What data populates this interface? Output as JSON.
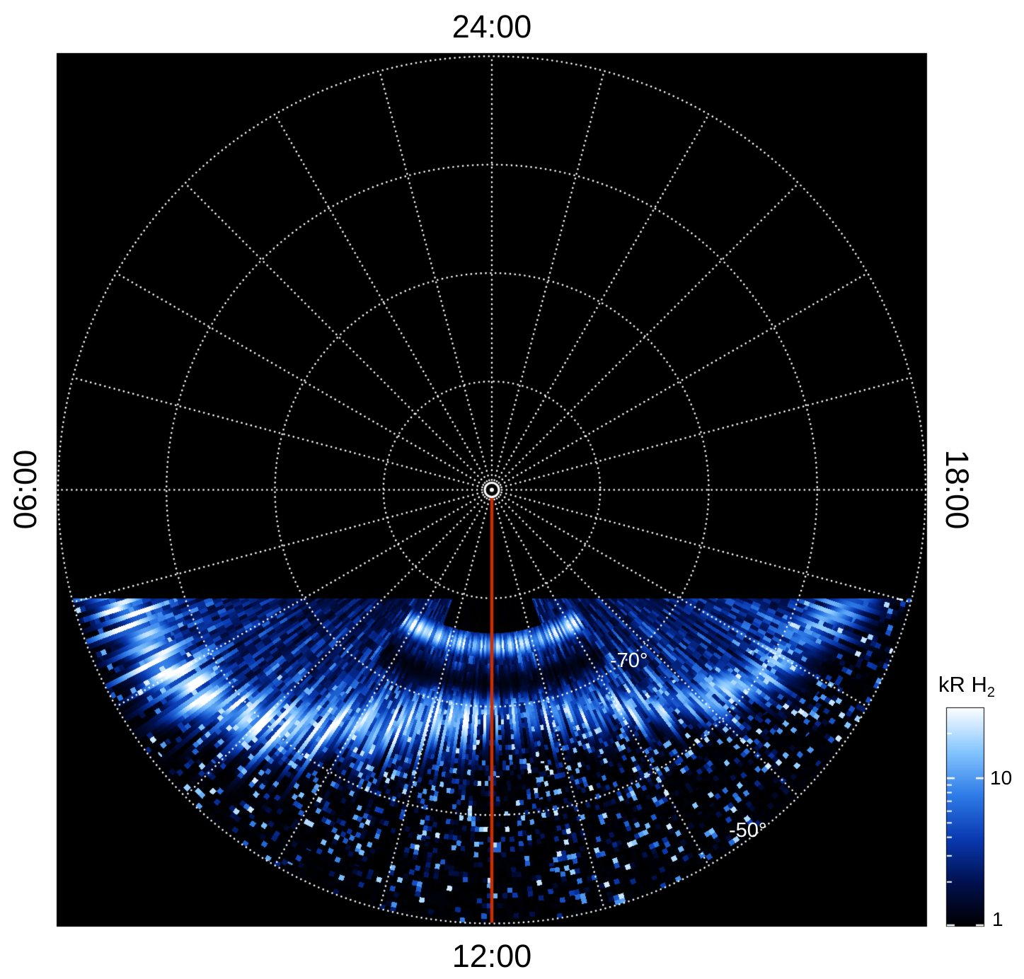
{
  "labels": {
    "top": "24:00",
    "bottom": "12:00",
    "left": "06:00",
    "right": "18:00",
    "lat_inner": "-70°",
    "lat_outer": "-50°"
  },
  "colorbar": {
    "title_main": "kR H",
    "title_sub": "2",
    "tick_upper": "10",
    "tick_lower": "1"
  },
  "colors": {
    "plot_background": "#000000",
    "grid": "#ffffff",
    "meridian_line": "#cc2e00",
    "label_text": "#000000",
    "latitude_label_text": "#ffffff",
    "colormap": [
      "#000000",
      "#001150",
      "#0a3ab2",
      "#2f7ce8",
      "#86c7ff",
      "#ffffff"
    ]
  },
  "chart_data": {
    "type": "heatmap",
    "projection": "polar",
    "angular_axis": {
      "quantity": "local time",
      "labels": {
        "top": "24:00",
        "left": "06:00",
        "bottom": "12:00",
        "right": "18:00"
      },
      "spoke_interval_hours": 1
    },
    "radial_axis": {
      "quantity": "latitude (deg)",
      "pole_deg": -90,
      "edge_deg": -50,
      "ring_interval_deg": 10,
      "rings_deg": [
        -80,
        -70,
        -60,
        -50
      ],
      "labeled_rings": [
        "-70°",
        "-50°"
      ]
    },
    "value_axis": {
      "label": "kR H2",
      "scale": "log",
      "range_kR": [
        1,
        30
      ],
      "colorbar_ticks": [
        10,
        1
      ]
    },
    "data_coverage": "Emission present only in the dayside sector below the horizontal chord crossing the noon meridian near -80 deg; the nightside (upper) half of the polar cap contains no data (black).",
    "auroral_band": {
      "hours": [
        6,
        7,
        8,
        9,
        10,
        11,
        12,
        13,
        14,
        15,
        16,
        17,
        18
      ],
      "peak_latitude_deg": [
        -52,
        -54,
        -56,
        -60,
        -65,
        -68,
        -70,
        -69,
        -67,
        -63,
        -59,
        -55,
        -52
      ],
      "peak_intensity_kR": [
        20,
        28,
        30,
        26,
        20,
        16,
        14,
        13,
        13,
        12,
        10,
        8,
        6
      ]
    },
    "secondary_features": [
      "patchy 1-10 kR emission equatorward of the main band down to -50 deg",
      "dark region poleward of about -77 deg around local noon",
      "narrow dark arc near -72 deg around local noon splitting the band",
      "inner bright arc near -75.5 deg around local noon"
    ],
    "noon_meridian_line": {
      "hour": "12:00",
      "color": "#cc2e00"
    }
  }
}
